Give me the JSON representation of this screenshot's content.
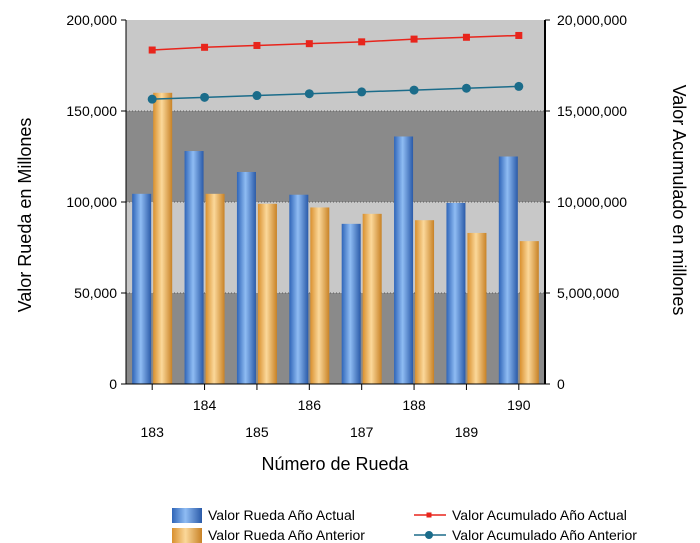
{
  "chart_data": {
    "type": "bar",
    "categories": [
      "183",
      "184",
      "185",
      "186",
      "187",
      "188",
      "189",
      "190"
    ],
    "series": [
      {
        "name": "Valor Rueda Año Actual",
        "axis": "left",
        "kind": "bar",
        "color": "#4f8fe0",
        "values": [
          104500,
          128000,
          116500,
          104000,
          88000,
          136000,
          99500,
          125000
        ]
      },
      {
        "name": "Valor Rueda Año Anterior",
        "axis": "left",
        "kind": "bar",
        "color": "#f6b44a",
        "values": [
          160000,
          104500,
          99000,
          97000,
          93500,
          90000,
          83000,
          78500
        ]
      },
      {
        "name": "Valor Acumulado Año Actual",
        "axis": "right",
        "kind": "line",
        "marker": "square",
        "color": "#e8251c",
        "values": [
          18350000,
          18500000,
          18600000,
          18700000,
          18800000,
          18950000,
          19050000,
          19150000
        ]
      },
      {
        "name": "Valor Acumulado Año Anterior",
        "axis": "right",
        "kind": "line",
        "marker": "circle",
        "color": "#1b6c8a",
        "values": [
          15650000,
          15750000,
          15850000,
          15950000,
          16050000,
          16150000,
          16250000,
          16350000
        ]
      }
    ],
    "y_left": {
      "label": "Valor Rueda en Millones",
      "ylim": [
        0,
        200000
      ],
      "ticks": [
        0,
        50000,
        100000,
        150000,
        200000
      ],
      "tick_labels": [
        "0",
        "50,000",
        "100,000",
        "150,000",
        "200,000"
      ]
    },
    "y_right": {
      "label": "Valor Acumulado en millones",
      "ylim": [
        0,
        20000000
      ],
      "ticks": [
        0,
        5000000,
        10000000,
        15000000,
        20000000
      ],
      "tick_labels": [
        "0",
        "5,000,000",
        "10,000,000",
        "15,000,000",
        "20,000,000"
      ]
    },
    "xlabel": "Número de Rueda",
    "x_tick_rows": {
      "upper": [
        "184",
        "186",
        "188",
        "190"
      ],
      "lower": [
        "183",
        "185",
        "187",
        "189"
      ]
    },
    "background_bands": [
      "#c8c8c8",
      "#8a8a8a",
      "#c8c8c8",
      "#8a8a8a"
    ],
    "grid": true,
    "legend_position": "bottom"
  }
}
